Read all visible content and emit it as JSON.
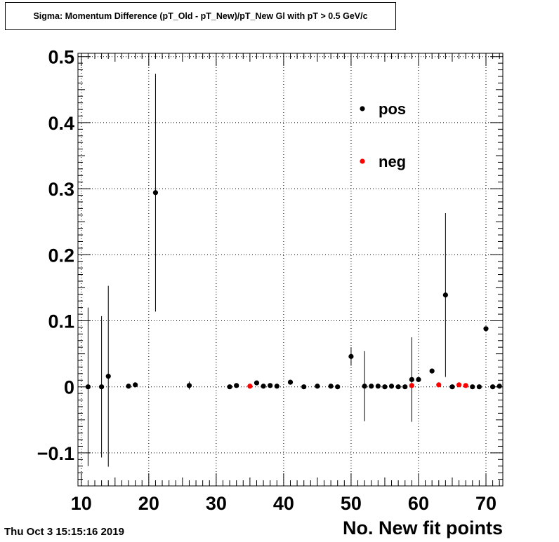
{
  "chart_data": {
    "type": "scatter",
    "title": "Sigma: Momentum Difference (pT_Old - pT_New)/pT_New Gl with pT > 0.5 GeV/c",
    "xlabel": "No. New fit points",
    "ylabel": "",
    "xlim": [
      9.5,
      72.5
    ],
    "ylim": [
      -0.15,
      0.505
    ],
    "x_ticks": [
      10,
      20,
      30,
      40,
      50,
      60,
      70
    ],
    "y_ticks": [
      -0.1,
      0,
      0.1,
      0.2,
      0.3,
      0.4,
      0.5
    ],
    "x_tick_labels": [
      "10",
      "20",
      "30",
      "40",
      "50",
      "60",
      "70"
    ],
    "y_tick_labels": [
      "−0.1",
      "0",
      "0.1",
      "0.2",
      "0.3",
      "0.4",
      "0.5"
    ],
    "grid": true,
    "legend_position": "top-right",
    "series": [
      {
        "name": "pos",
        "color": "#000000",
        "points": [
          {
            "x": 11,
            "y": 0.0,
            "err": 0.12
          },
          {
            "x": 13,
            "y": 0.0,
            "err": 0.107
          },
          {
            "x": 14,
            "y": 0.016,
            "err": 0.137
          },
          {
            "x": 17,
            "y": 0.001,
            "err": 0.0
          },
          {
            "x": 18,
            "y": 0.003,
            "err": 0.0
          },
          {
            "x": 21,
            "y": 0.294,
            "err": 0.18
          },
          {
            "x": 26,
            "y": 0.002,
            "err": 0.006
          },
          {
            "x": 32,
            "y": 0.0,
            "err": 0.0
          },
          {
            "x": 33,
            "y": 0.002,
            "err": 0.0
          },
          {
            "x": 36,
            "y": 0.006,
            "err": 0.0
          },
          {
            "x": 37,
            "y": 0.001,
            "err": 0.0
          },
          {
            "x": 38,
            "y": 0.002,
            "err": 0.0
          },
          {
            "x": 39,
            "y": 0.001,
            "err": 0.0
          },
          {
            "x": 41,
            "y": 0.007,
            "err": 0.0
          },
          {
            "x": 43,
            "y": 0.0,
            "err": 0.0
          },
          {
            "x": 45,
            "y": 0.001,
            "err": 0.0
          },
          {
            "x": 47,
            "y": 0.001,
            "err": 0.0
          },
          {
            "x": 48,
            "y": 0.0,
            "err": 0.0
          },
          {
            "x": 50,
            "y": 0.046,
            "err": 0.014
          },
          {
            "x": 52,
            "y": 0.001,
            "err": 0.053
          },
          {
            "x": 53,
            "y": 0.001,
            "err": 0.0
          },
          {
            "x": 54,
            "y": 0.001,
            "err": 0.0
          },
          {
            "x": 55,
            "y": 0.0,
            "err": 0.0
          },
          {
            "x": 56,
            "y": 0.001,
            "err": 0.0
          },
          {
            "x": 57,
            "y": 0.0,
            "err": 0.0
          },
          {
            "x": 58,
            "y": 0.0,
            "err": 0.0
          },
          {
            "x": 59,
            "y": 0.011,
            "err": 0.064
          },
          {
            "x": 60,
            "y": 0.011,
            "err": 0.0
          },
          {
            "x": 62,
            "y": 0.024,
            "err": 0.0
          },
          {
            "x": 64,
            "y": 0.139,
            "err": 0.124
          },
          {
            "x": 65,
            "y": 0.0,
            "err": 0.0
          },
          {
            "x": 68,
            "y": 0.0,
            "err": 0.0
          },
          {
            "x": 69,
            "y": 0.0,
            "err": 0.0
          },
          {
            "x": 70,
            "y": 0.088,
            "err": 0.0
          },
          {
            "x": 71,
            "y": 0.0,
            "err": 0.0
          },
          {
            "x": 72,
            "y": 0.001,
            "err": 0.0
          }
        ]
      },
      {
        "name": "neg",
        "color": "#ff0000",
        "points": [
          {
            "x": 35,
            "y": 0.001,
            "err": 0.0
          },
          {
            "x": 59,
            "y": 0.002,
            "err": 0.0
          },
          {
            "x": 63,
            "y": 0.003,
            "err": 0.0
          },
          {
            "x": 66,
            "y": 0.003,
            "err": 0.0
          },
          {
            "x": 67,
            "y": 0.002,
            "err": 0.0
          }
        ]
      }
    ]
  },
  "footer": {
    "datestamp": "Thu Oct  3 15:15:16 2019"
  }
}
